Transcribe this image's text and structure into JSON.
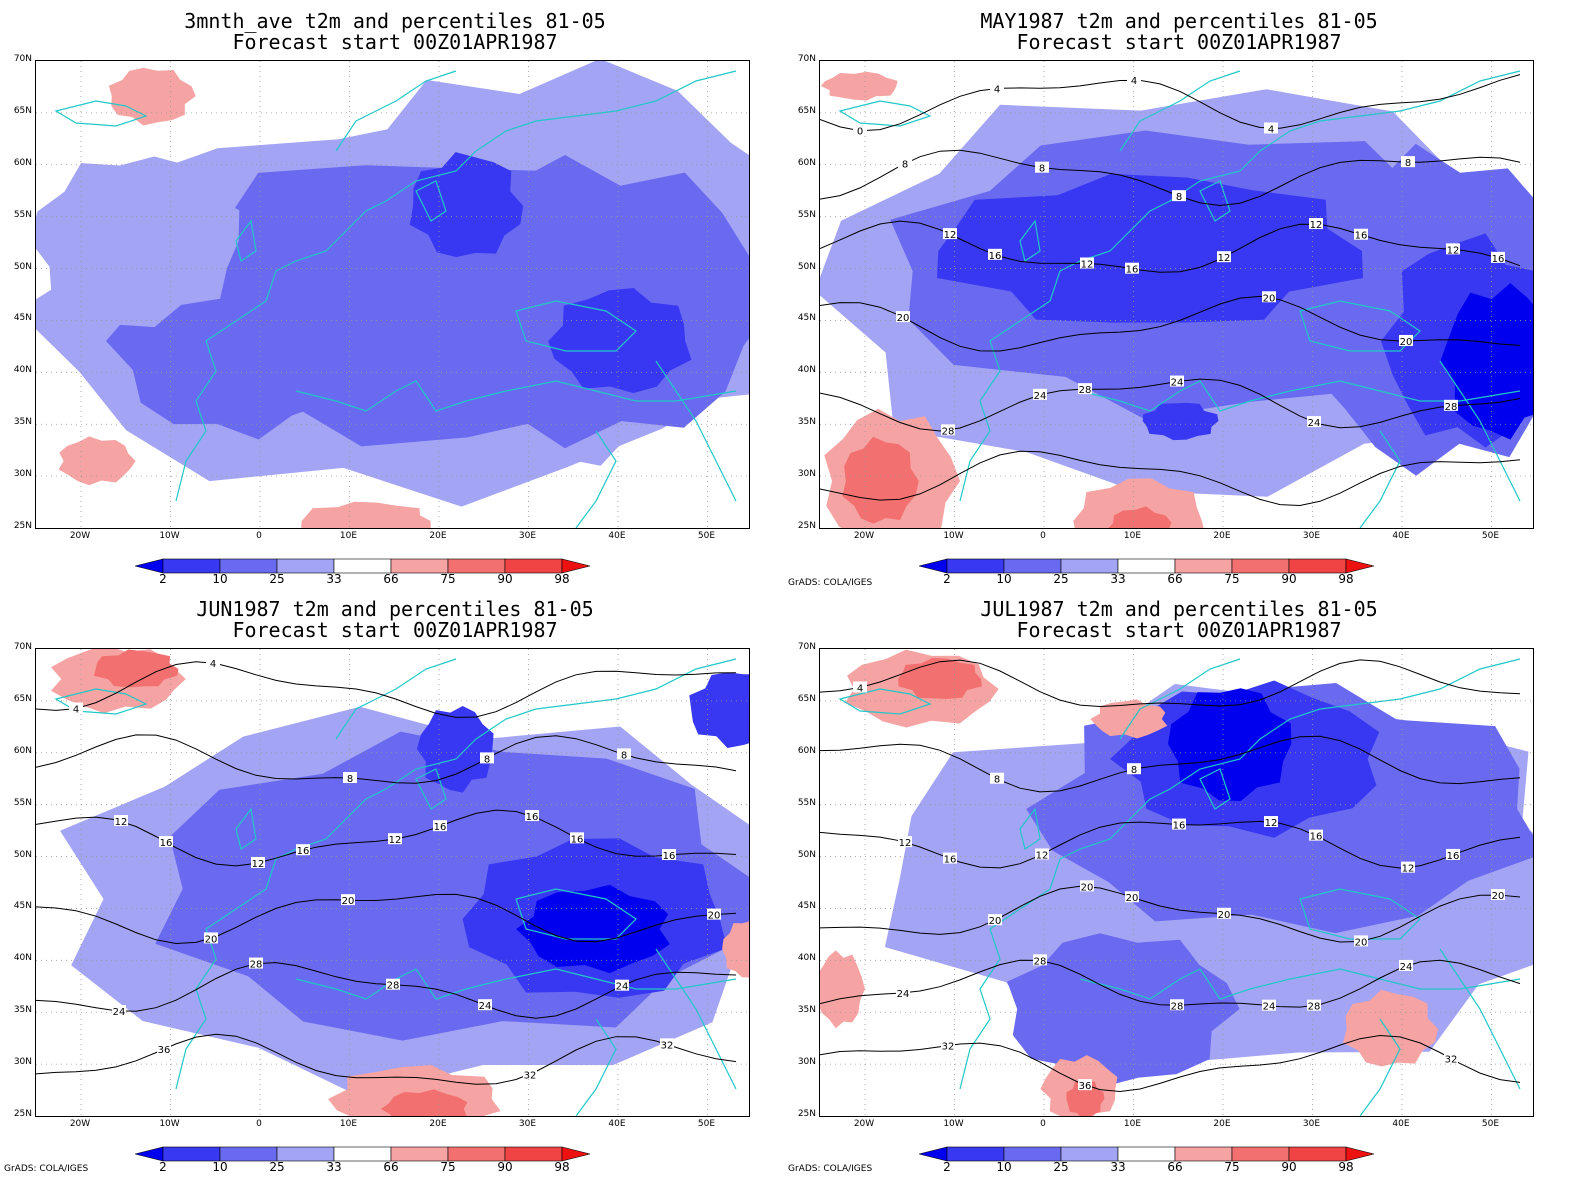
{
  "credit": "GrADS: COLA/IGES",
  "colorbar": {
    "labels": [
      "2",
      "10",
      "25",
      "33",
      "66",
      "75",
      "90",
      "98"
    ],
    "colors": [
      "#0000ee",
      "#3838f2",
      "#6a6af0",
      "#a4a4f4",
      "#ffffff",
      "#f5a3a3",
      "#f27070",
      "#f04444",
      "#ee1111"
    ]
  },
  "axes": {
    "lat_labels": [
      "70N",
      "65N",
      "60N",
      "55N",
      "50N",
      "45N",
      "40N",
      "35N",
      "30N",
      "25N"
    ],
    "lon_labels": [
      "20W",
      "10W",
      "0",
      "10E",
      "20E",
      "30E",
      "40E",
      "50E"
    ]
  },
  "panels": [
    {
      "title1": "3mnth_ave t2m and percentiles 81-05",
      "title2": "Forecast start 00Z01APR1987",
      "contour_labels": [],
      "show_credit": false
    },
    {
      "title1": "MAY1987 t2m and percentiles 81-05",
      "title2": "Forecast start 00Z01APR1987",
      "contour_labels": [
        "0",
        "4",
        "4",
        "4",
        "8",
        "8",
        "8",
        "8",
        "12",
        "12",
        "12",
        "12",
        "12",
        "16",
        "16",
        "16",
        "16",
        "20",
        "20",
        "20",
        "24",
        "24",
        "24",
        "28",
        "28",
        "28"
      ],
      "show_credit": true
    },
    {
      "title1": "JUN1987 t2m and percentiles 81-05",
      "title2": "Forecast start 00Z01APR1987",
      "contour_labels": [
        "4",
        "4",
        "8",
        "8",
        "8",
        "12",
        "12",
        "12",
        "16",
        "16",
        "16",
        "16",
        "16",
        "16",
        "20",
        "20",
        "20",
        "24",
        "24",
        "24",
        "28",
        "28",
        "32",
        "32",
        "36"
      ],
      "show_credit": true
    },
    {
      "title1": "JUL1987 t2m and percentiles 81-05",
      "title2": "Forecast start 00Z01APR1987",
      "contour_labels": [
        "4",
        "8",
        "8",
        "12",
        "12",
        "12",
        "12",
        "16",
        "16",
        "16",
        "16",
        "20",
        "20",
        "20",
        "20",
        "20",
        "20",
        "24",
        "24",
        "24",
        "28",
        "28",
        "28",
        "32",
        "32",
        "36"
      ],
      "show_credit": true
    }
  ]
}
